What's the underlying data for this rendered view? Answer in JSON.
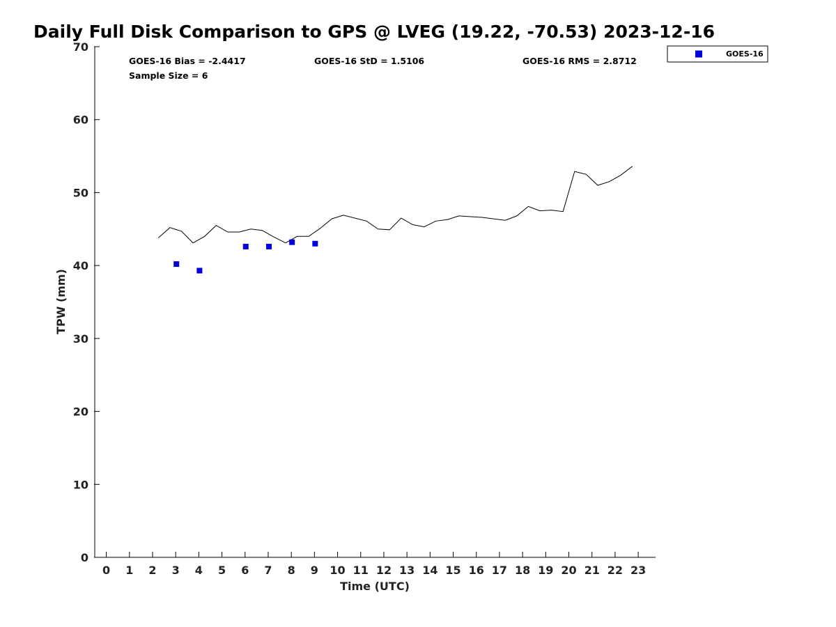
{
  "chart_data": {
    "type": "scatter",
    "title": "Daily Full Disk Comparison to GPS @ LVEG (19.22, -70.53) 2023-12-16",
    "xlabel": "Time (UTC)",
    "ylabel": "TPW (mm)",
    "xlim": [
      -0.5,
      23.75
    ],
    "ylim": [
      0,
      70
    ],
    "x_ticks": [
      0,
      1,
      2,
      3,
      4,
      5,
      6,
      7,
      8,
      9,
      10,
      11,
      12,
      13,
      14,
      15,
      16,
      17,
      18,
      19,
      20,
      21,
      22,
      23
    ],
    "y_ticks": [
      0,
      10,
      20,
      30,
      40,
      50,
      60,
      70
    ],
    "grid": false,
    "legend_position": "top-right, outside plot",
    "stats": {
      "bias": "GOES-16 Bias = -2.4417",
      "std": "GOES-16 StD = 1.5106",
      "rms": "GOES-16 RMS = 2.8712",
      "sample_size": "Sample Size = 6"
    },
    "series": [
      {
        "type": "line",
        "color": "#000000",
        "x": [
          2.25,
          2.75,
          3.25,
          3.75,
          4.25,
          4.75,
          5.25,
          5.75,
          6.25,
          6.75,
          7.25,
          7.75,
          8.25,
          8.75,
          9.25,
          9.75,
          10.25,
          10.75,
          11.25,
          11.75,
          12.25,
          12.75,
          13.25,
          13.75,
          14.25,
          14.75,
          15.25,
          15.75,
          16.25,
          16.75,
          17.25,
          17.75,
          18.25,
          18.75,
          19.25,
          19.75,
          20.25,
          20.75,
          21.25,
          21.75,
          22.25,
          22.75
        ],
        "y": [
          43.8,
          45.2,
          44.7,
          43.1,
          44.0,
          45.5,
          44.6,
          44.6,
          45.0,
          44.8,
          43.9,
          43.1,
          44.0,
          44.0,
          45.1,
          46.4,
          46.9,
          46.5,
          46.1,
          45.0,
          44.9,
          46.5,
          45.6,
          45.3,
          46.1,
          46.3,
          46.8,
          46.7,
          46.6,
          46.4,
          46.2,
          46.8,
          48.1,
          47.5,
          47.6,
          47.4,
          52.9,
          52.5,
          51.0,
          51.5,
          52.4,
          53.6
        ]
      },
      {
        "name": "GOES-16",
        "type": "scatter",
        "color": "#0000dd",
        "marker": "square",
        "x": [
          3.03,
          4.03,
          6.03,
          7.03,
          8.03,
          9.03
        ],
        "y": [
          40.2,
          39.3,
          42.6,
          42.6,
          43.2,
          43.0
        ]
      }
    ]
  }
}
